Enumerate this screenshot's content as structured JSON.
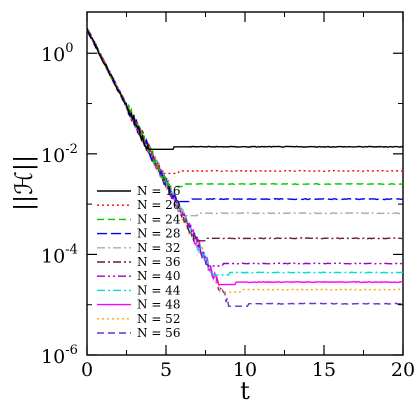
{
  "chart_data": {
    "type": "line",
    "xlabel": "t",
    "ylabel": "||ℋ||",
    "xlim": [
      0,
      20
    ],
    "ylim_log10": [
      -6,
      0.82
    ],
    "y_scale": "log",
    "grid": false,
    "legend_position": "bottom-left",
    "x_ticks": [
      "0",
      "5",
      "10",
      "15",
      "20"
    ],
    "y_ticks": [
      {
        "base": "10",
        "exp": "0"
      },
      {
        "base": "10",
        "exp": "-2"
      },
      {
        "base": "10",
        "exp": "-4"
      },
      {
        "base": "10",
        "exp": "-6"
      }
    ],
    "decay_log10_per_t": -0.61,
    "initial_log10": 0.48,
    "series": [
      {
        "name": "N = 16",
        "color": "#000000",
        "dash": "solid",
        "plateau_log10": -1.86,
        "plateau_t": 5.5
      },
      {
        "name": "N = 20",
        "color": "#ff0000",
        "dash": "dotted",
        "plateau_log10": -2.34,
        "plateau_t": 5.8
      },
      {
        "name": "N = 24",
        "color": "#00cc00",
        "dash": "dashed",
        "plateau_log10": -2.6,
        "plateau_t": 6.2
      },
      {
        "name": "N = 28",
        "color": "#0000ff",
        "dash": "longdash",
        "plateau_log10": -2.9,
        "plateau_t": 6.6
      },
      {
        "name": "N = 32",
        "color": "#aaaaaa",
        "dash": "dashdot",
        "plateau_log10": -3.18,
        "plateau_t": 7.0
      },
      {
        "name": "N = 36",
        "color": "#6b1a3c",
        "dash": "dashdot",
        "plateau_log10": -3.68,
        "plateau_t": 7.6
      },
      {
        "name": "N = 40",
        "color": "#9900cc",
        "dash": "dashdotdot",
        "plateau_log10": -4.18,
        "plateau_t": 8.6
      },
      {
        "name": "N = 44",
        "color": "#00dddd",
        "dash": "dashdot",
        "plateau_log10": -4.36,
        "plateau_t": 9.0
      },
      {
        "name": "N = 48",
        "color": "#ff00ff",
        "dash": "solid",
        "plateau_log10": -4.55,
        "plateau_t": 9.4
      },
      {
        "name": "N = 52",
        "color": "#ffa500",
        "dash": "dotted",
        "plateau_log10": -4.7,
        "plateau_t": 9.7
      },
      {
        "name": "N = 56",
        "color": "#6633cc",
        "dash": "dashed",
        "plateau_log10": -4.98,
        "plateau_t": 10.2
      }
    ]
  }
}
